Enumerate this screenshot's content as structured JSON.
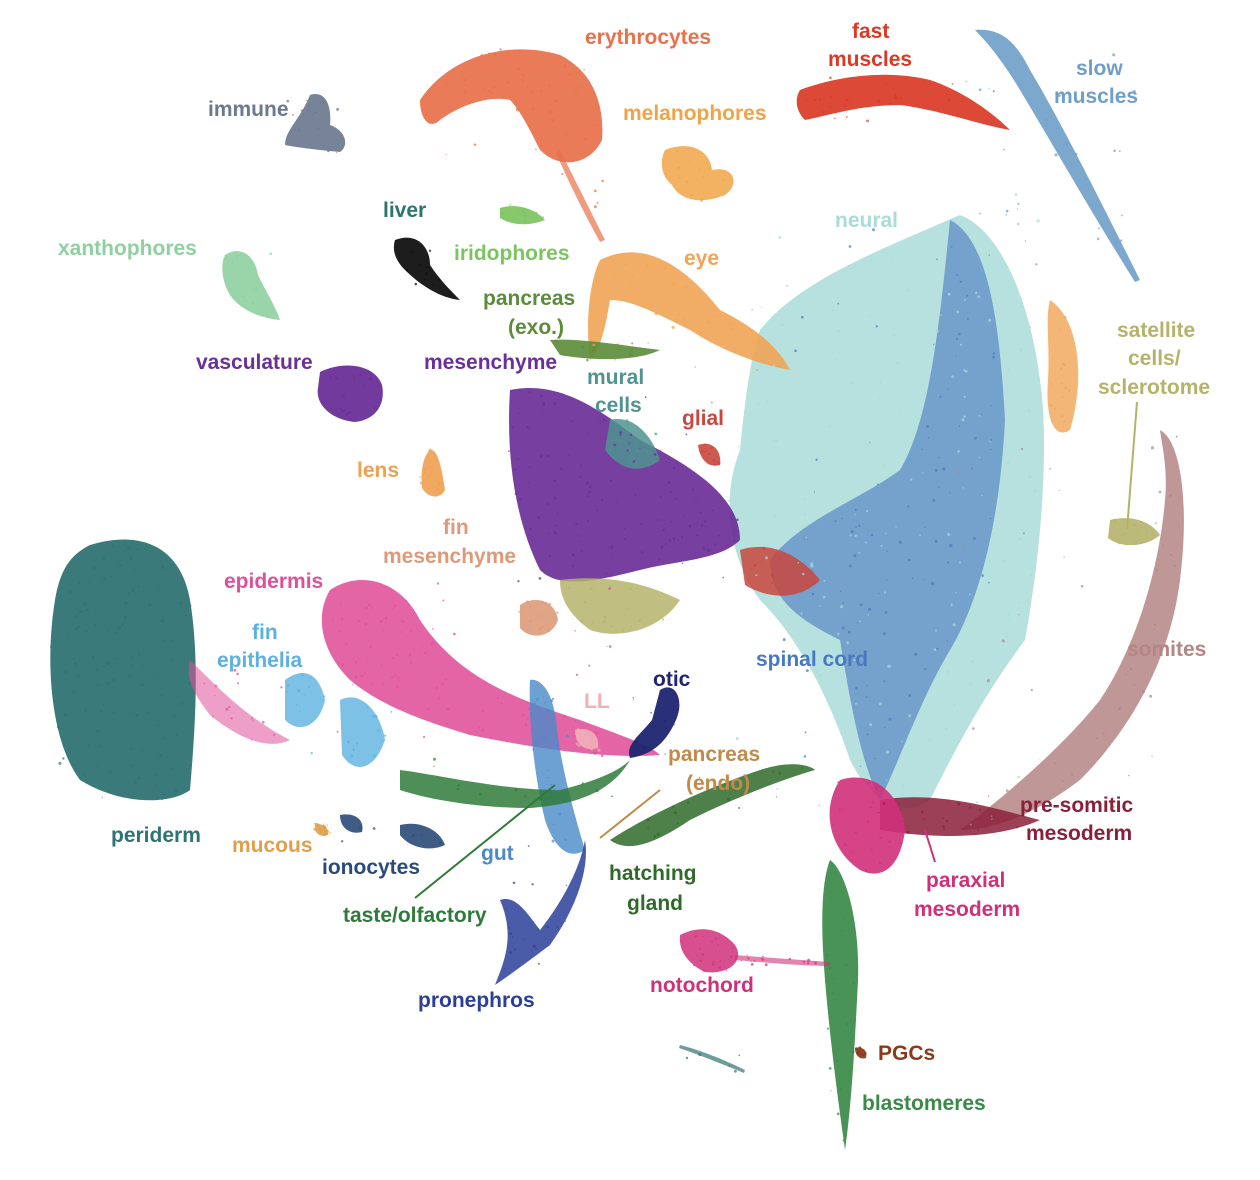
{
  "chart_data": {
    "type": "scatter",
    "title": "",
    "xlabel": "",
    "ylabel": "",
    "grid": false,
    "legend": "none (cluster names printed as in-plot labels)",
    "clusters": [
      {
        "name": "erythrocytes",
        "color": "#e8704a"
      },
      {
        "name": "fast muscles",
        "color": "#d93a26"
      },
      {
        "name": "slow muscles",
        "color": "#6f9fc9"
      },
      {
        "name": "immune",
        "color": "#6b7a8f"
      },
      {
        "name": "melanophores",
        "color": "#f0a445"
      },
      {
        "name": "liver",
        "color": "#111111"
      },
      {
        "name": "iridophores",
        "color": "#7cc461"
      },
      {
        "name": "xanthophores",
        "color": "#8fd0a0"
      },
      {
        "name": "neural",
        "color": "#a9dcd8"
      },
      {
        "name": "eye",
        "color": "#f0a455"
      },
      {
        "name": "pancreas (exo.)",
        "color": "#5b8c3a"
      },
      {
        "name": "vasculature",
        "color": "#6a2f98"
      },
      {
        "name": "mesenchyme",
        "color": "#6a2f98"
      },
      {
        "name": "mural cells",
        "color": "#4f9490"
      },
      {
        "name": "glial",
        "color": "#c9473d"
      },
      {
        "name": "satellite cells/ sclerotome",
        "color": "#b5b36a"
      },
      {
        "name": "lens",
        "color": "#f0a050"
      },
      {
        "name": "fin mesenchyme",
        "color": "#dd9a7a"
      },
      {
        "name": "epidermis",
        "color": "#e0509a"
      },
      {
        "name": "periderm",
        "color": "#2f7374"
      },
      {
        "name": "fin epithelia",
        "color": "#5db1e0"
      },
      {
        "name": "somites",
        "color": "#b58585"
      },
      {
        "name": "spinal cord",
        "color": "#4a78c0"
      },
      {
        "name": "LL",
        "color": "#f0b0b8"
      },
      {
        "name": "otic",
        "color": "#1f2570"
      },
      {
        "name": "pancreas (endo)",
        "color": "#c08a4a"
      },
      {
        "name": "pre-somitic mesoderm",
        "color": "#8a1f3a"
      },
      {
        "name": "mucous",
        "color": "#e0a04a"
      },
      {
        "name": "ionocytes",
        "color": "#2a4a78"
      },
      {
        "name": "gut",
        "color": "#4a8ac8"
      },
      {
        "name": "taste/olfactory",
        "color": "#2f7a3a"
      },
      {
        "name": "hatching gland",
        "color": "#2f6a2a"
      },
      {
        "name": "paraxial mesoderm",
        "color": "#d0307a"
      },
      {
        "name": "pronephros",
        "color": "#2a3f98"
      },
      {
        "name": "notochord",
        "color": "#d0307a"
      },
      {
        "name": "PGCs",
        "color": "#8a3a1a"
      },
      {
        "name": "blastomeres",
        "color": "#3a8a48"
      }
    ]
  },
  "labels": {
    "erythrocytes": "erythrocytes",
    "fast_muscles_1": "fast",
    "fast_muscles_2": "muscles",
    "slow_muscles_1": "slow",
    "slow_muscles_2": "muscles",
    "immune": "immune",
    "melanophores": "melanophores",
    "liver": "liver",
    "neural": "neural",
    "xanthophores": "xanthophores",
    "iridophores": "iridophores",
    "eye": "eye",
    "pancreas_exo_1": "pancreas",
    "pancreas_exo_2": "(exo.)",
    "satellite_1": "satellite",
    "satellite_2": "cells/",
    "satellite_3": "sclerotome",
    "vasculature": "vasculature",
    "mesenchyme": "mesenchyme",
    "mural_1": "mural",
    "mural_2": "cells",
    "glial": "glial",
    "lens": "lens",
    "fin_mesenchyme_1": "fin",
    "fin_mesenchyme_2": "mesenchyme",
    "epidermis": "epidermis",
    "fin_epithelia_1": "fin",
    "fin_epithelia_2": "epithelia",
    "somites": "somites",
    "spinal_cord": "spinal cord",
    "ll": "LL",
    "otic": "otic",
    "pancreas_endo_1": "pancreas",
    "pancreas_endo_2": "(endo)",
    "presomitic_1": "pre-somitic",
    "presomitic_2": "mesoderm",
    "periderm": "periderm",
    "mucous": "mucous",
    "ionocytes": "ionocytes",
    "gut": "gut",
    "hatching_1": "hatching",
    "hatching_2": "gland",
    "paraxial_1": "paraxial",
    "paraxial_2": "mesoderm",
    "taste": "taste/olfactory",
    "notochord": "notochord",
    "pronephros": "pronephros",
    "pgcs": "PGCs",
    "blastomeres": "blastomeres"
  }
}
